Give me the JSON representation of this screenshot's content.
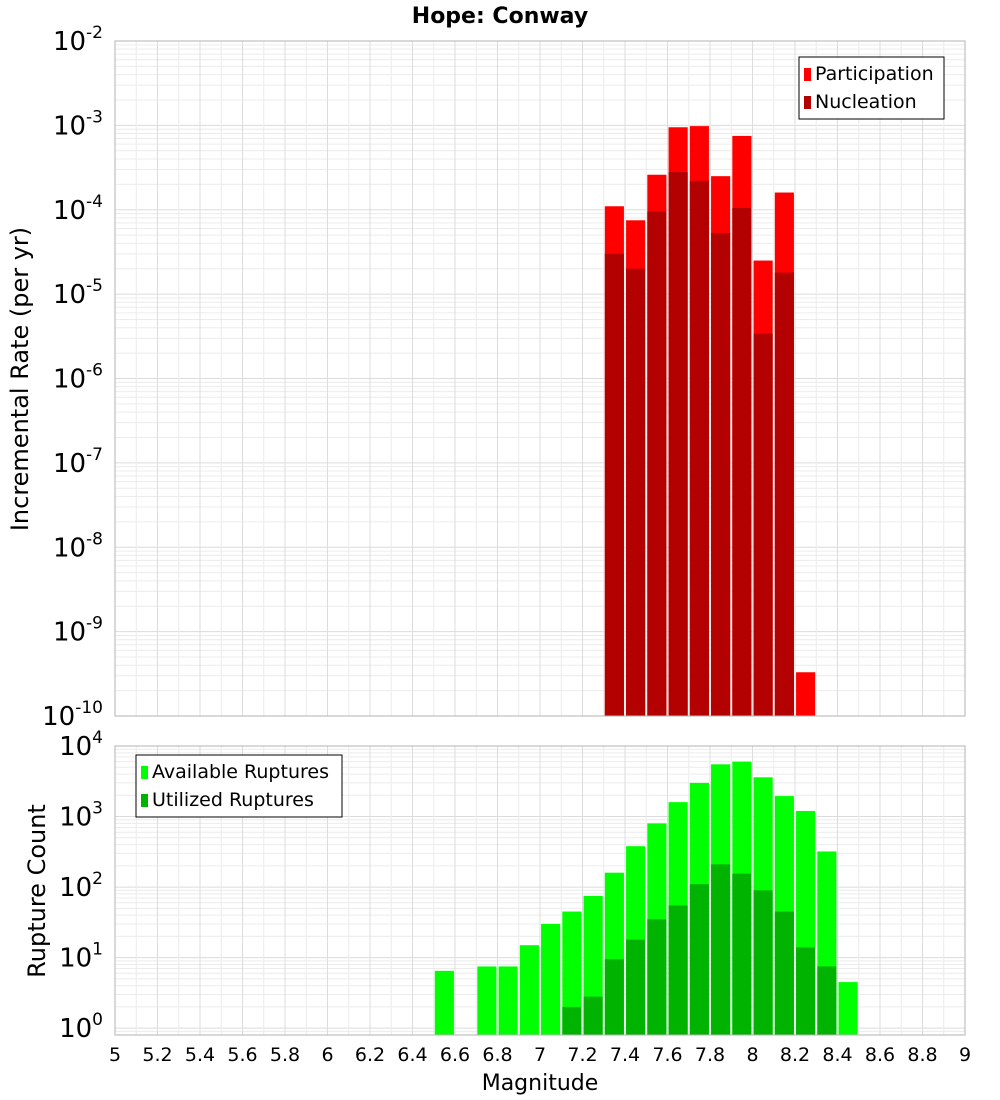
{
  "chart_data": [
    {
      "type": "bar",
      "title": "Hope: Conway",
      "xlabel": "",
      "ylabel": "Incremental Rate (per yr)",
      "yscale": "log",
      "ylim": [
        1e-10,
        0.01
      ],
      "xlim": [
        5,
        9
      ],
      "y_tick_labels": [
        {
          "base": "10",
          "exp": "-10"
        },
        {
          "base": "10",
          "exp": "-9"
        },
        {
          "base": "10",
          "exp": "-8"
        },
        {
          "base": "10",
          "exp": "-7"
        },
        {
          "base": "10",
          "exp": "-6"
        },
        {
          "base": "10",
          "exp": "-5"
        },
        {
          "base": "10",
          "exp": "-4"
        },
        {
          "base": "10",
          "exp": "-3"
        },
        {
          "base": "10",
          "exp": "-2"
        }
      ],
      "legend_position": "top-right",
      "grid": true,
      "x": [
        7.35,
        7.45,
        7.55,
        7.65,
        7.75,
        7.85,
        7.95,
        8.05,
        8.15,
        8.25
      ],
      "series": [
        {
          "name": "Participation",
          "color": "#ff0000",
          "values": [
            0.00011,
            7.5e-05,
            0.00026,
            0.00095,
            0.00098,
            0.00025,
            0.00075,
            2.5e-05,
            0.00016,
            3.3e-10
          ]
        },
        {
          "name": "Nucleation",
          "color": "#b30000",
          "values": [
            3e-05,
            2e-05,
            9.5e-05,
            0.00028,
            0.00022,
            5.3e-05,
            0.000105,
            3.4e-06,
            1.8e-05,
            null
          ]
        }
      ]
    },
    {
      "type": "bar",
      "title": "",
      "xlabel": "Magnitude",
      "ylabel": "Rupture Count",
      "yscale": "log",
      "ylim": [
        0.8,
        10000.0
      ],
      "xlim": [
        5,
        9
      ],
      "y_tick_labels": [
        {
          "base": "10",
          "exp": "0"
        },
        {
          "base": "10",
          "exp": "1"
        },
        {
          "base": "10",
          "exp": "2"
        },
        {
          "base": "10",
          "exp": "3"
        },
        {
          "base": "10",
          "exp": "4"
        }
      ],
      "x_tick_labels": [
        "5",
        "5.2",
        "5.4",
        "5.6",
        "5.8",
        "6",
        "6.2",
        "6.4",
        "6.6",
        "6.8",
        "7",
        "7.2",
        "7.4",
        "7.6",
        "7.8",
        "8",
        "8.2",
        "8.4",
        "8.6",
        "8.8",
        "9"
      ],
      "legend_position": "top-left",
      "grid": true,
      "x": [
        6.55,
        6.75,
        6.85,
        6.95,
        7.05,
        7.15,
        7.25,
        7.35,
        7.45,
        7.55,
        7.65,
        7.75,
        7.85,
        7.95,
        8.05,
        8.15,
        8.25,
        8.35,
        8.45
      ],
      "series": [
        {
          "name": "Available Ruptures",
          "color": "#00ff00",
          "values": [
            6.5,
            7.5,
            7.5,
            15,
            30,
            45,
            75,
            160,
            380,
            800,
            1600,
            3000,
            5500,
            6000,
            3600,
            1950,
            1200,
            320,
            4.5
          ]
        },
        {
          "name": "Utilized Ruptures",
          "color": "#00b300",
          "values": [
            null,
            null,
            null,
            null,
            null,
            2,
            2.8,
            9.5,
            18,
            35,
            55,
            110,
            210,
            155,
            90,
            45,
            14,
            7.5,
            null
          ]
        }
      ]
    }
  ]
}
